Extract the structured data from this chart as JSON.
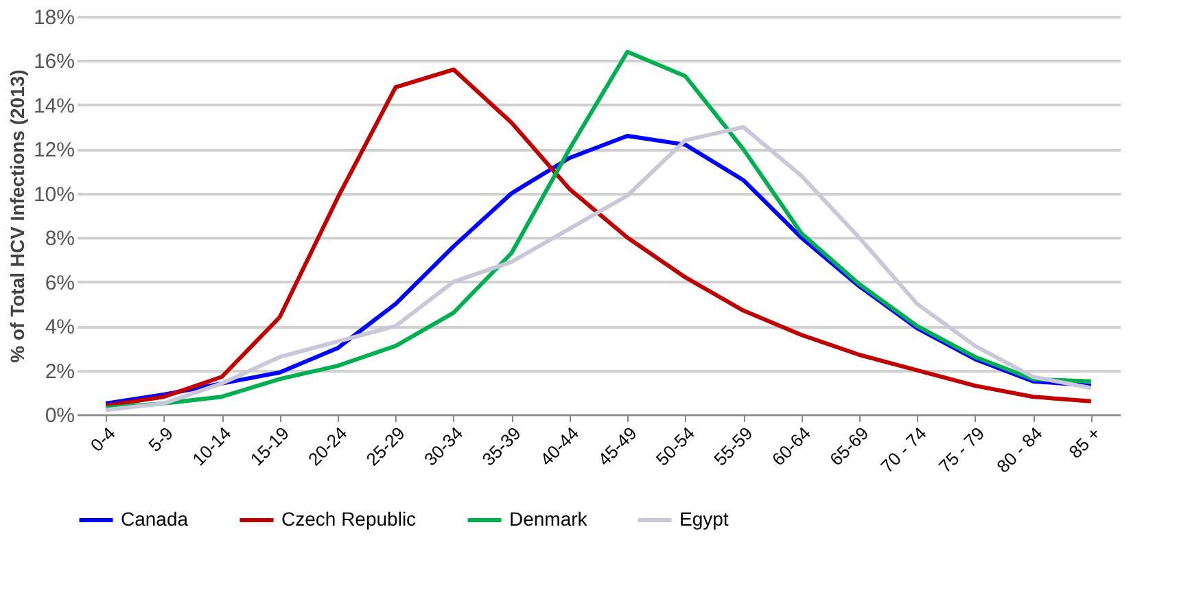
{
  "chart_data": {
    "type": "line",
    "ylabel": "% of Total HCV Infections (2013)",
    "categories": [
      "0-4",
      "5-9",
      "10-14",
      "15-19",
      "20-24",
      "25-29",
      "30-34",
      "35-39",
      "40-44",
      "45-49",
      "50-54",
      "55-59",
      "60-64",
      "65-69",
      "70 - 74",
      "75 - 79",
      "80 - 84",
      "85 +"
    ],
    "series": [
      {
        "name": "Canada",
        "color": "#0000ff",
        "values": [
          0.5,
          0.9,
          1.4,
          1.9,
          3.0,
          5.0,
          7.6,
          10.0,
          11.6,
          12.6,
          12.2,
          10.6,
          8.0,
          5.8,
          3.9,
          2.5,
          1.5,
          1.3
        ]
      },
      {
        "name": "Czech Republic",
        "color": "#c00000",
        "values": [
          0.4,
          0.8,
          1.7,
          4.4,
          9.8,
          14.8,
          15.6,
          13.2,
          10.2,
          8.0,
          6.2,
          4.7,
          3.6,
          2.7,
          2.0,
          1.3,
          0.8,
          0.6
        ]
      },
      {
        "name": "Denmark",
        "color": "#00b050",
        "values": [
          0.3,
          0.5,
          0.8,
          1.6,
          2.2,
          3.1,
          4.6,
          7.3,
          12.0,
          16.4,
          15.3,
          12.0,
          8.2,
          5.9,
          4.0,
          2.6,
          1.6,
          1.5
        ]
      },
      {
        "name": "Egypt",
        "color": "#c8c8d8",
        "values": [
          0.2,
          0.5,
          1.4,
          2.6,
          3.3,
          4.0,
          6.0,
          6.9,
          8.4,
          9.9,
          12.4,
          13.0,
          10.8,
          8.0,
          5.0,
          3.1,
          1.7,
          1.2
        ]
      }
    ],
    "ylim": [
      0,
      18
    ],
    "yticks": [
      {
        "value": 0,
        "label": "0%"
      },
      {
        "value": 2,
        "label": "2%"
      },
      {
        "value": 4,
        "label": "4%"
      },
      {
        "value": 6,
        "label": "6%"
      },
      {
        "value": 8,
        "label": "8%"
      },
      {
        "value": 10,
        "label": "10%"
      },
      {
        "value": 12,
        "label": "12%"
      },
      {
        "value": 14,
        "label": "14%"
      },
      {
        "value": 16,
        "label": "16%"
      },
      {
        "value": 18,
        "label": "18%"
      }
    ],
    "grid": "y",
    "legend": "bottom",
    "marker": "none",
    "line_style": "solid"
  }
}
